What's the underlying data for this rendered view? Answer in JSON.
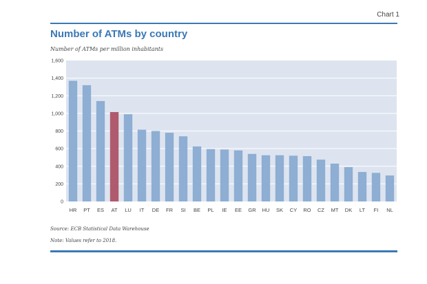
{
  "header": {
    "chart_tag": "Chart 1"
  },
  "colors": {
    "accent": "#3a78b5",
    "bar": "#8eaed3",
    "highlight": "#b05a6e",
    "plot_bg": "#dde4f0",
    "grid": "#ffffff"
  },
  "footer": {
    "source": "Source: ECB Statistical Data Warehouse",
    "note": "Note: Values refer to 2018."
  },
  "chart_data": {
    "type": "bar",
    "title": "Number of ATMs by country",
    "subtitle": "Number of ATMs per million inhabitants",
    "xlabel": "",
    "ylabel": "",
    "ylim": [
      0,
      1600
    ],
    "yticks": [
      "0",
      "200",
      "400",
      "600",
      "800",
      "1,000",
      "1,200",
      "1,400",
      "1,600"
    ],
    "grid": true,
    "categories": [
      "HR",
      "PT",
      "ES",
      "AT",
      "LU",
      "IT",
      "DE",
      "FR",
      "SI",
      "BE",
      "PL",
      "IE",
      "EE",
      "GR",
      "HU",
      "SK",
      "CY",
      "RO",
      "CZ",
      "MT",
      "DK",
      "LT",
      "FI",
      "NL"
    ],
    "values": [
      1370,
      1320,
      1140,
      1015,
      990,
      815,
      800,
      780,
      740,
      625,
      595,
      590,
      580,
      540,
      525,
      525,
      520,
      515,
      475,
      430,
      390,
      335,
      325,
      295
    ],
    "highlight": "AT"
  }
}
